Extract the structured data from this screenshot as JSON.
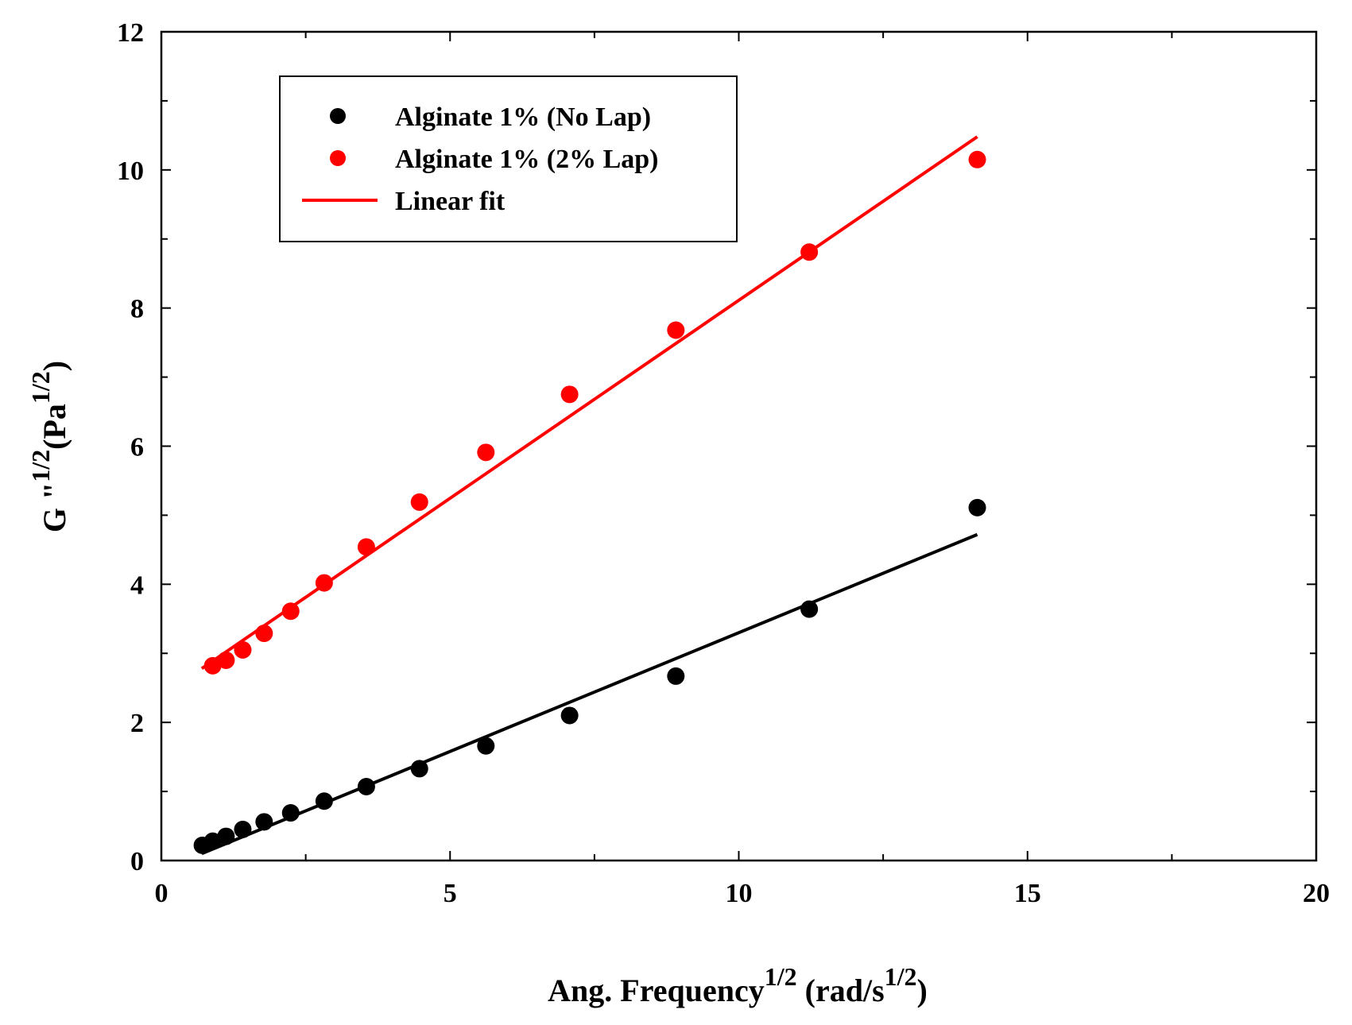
{
  "chart_data": {
    "type": "scatter",
    "title": "",
    "xlabel": {
      "main": "Ang. Frequency",
      "sup1": "1/2",
      "unit_open": " (rad/s",
      "sup2": "1/2",
      "unit_close": ")"
    },
    "ylabel": {
      "main": "G \"",
      "sup1": "1/2",
      "unit_open": "(Pa",
      "sup2": "1/2",
      "unit_close": ")"
    },
    "xlim": [
      0,
      20
    ],
    "ylim": [
      0,
      12
    ],
    "x_ticks": [
      0,
      5,
      10,
      15,
      20
    ],
    "x_tick_labels": [
      "0",
      "5",
      "10",
      "15",
      "20"
    ],
    "y_ticks": [
      0,
      2,
      4,
      6,
      8,
      10,
      12
    ],
    "y_tick_labels": [
      "0",
      "2",
      "4",
      "6",
      "8",
      "10",
      "12"
    ],
    "grid": false,
    "legend_position": "top-left",
    "series": [
      {
        "name": "Alginate 1% (No Lap)",
        "color": "#000000",
        "points": [
          {
            "x": 0.71,
            "y": 0.22
          },
          {
            "x": 0.89,
            "y": 0.28
          },
          {
            "x": 1.12,
            "y": 0.35
          },
          {
            "x": 1.41,
            "y": 0.45
          },
          {
            "x": 1.78,
            "y": 0.56
          },
          {
            "x": 2.24,
            "y": 0.69
          },
          {
            "x": 2.82,
            "y": 0.86
          },
          {
            "x": 3.55,
            "y": 1.07
          },
          {
            "x": 4.47,
            "y": 1.33
          },
          {
            "x": 5.62,
            "y": 1.66
          },
          {
            "x": 7.07,
            "y": 2.1
          },
          {
            "x": 8.91,
            "y": 2.67
          },
          {
            "x": 11.22,
            "y": 3.64
          },
          {
            "x": 14.13,
            "y": 5.11
          }
        ]
      },
      {
        "name": "Alginate 1% (2% Lap)",
        "color": "#ff0000",
        "points": [
          {
            "x": 0.89,
            "y": 2.82
          },
          {
            "x": 1.12,
            "y": 2.9
          },
          {
            "x": 1.41,
            "y": 3.05
          },
          {
            "x": 1.78,
            "y": 3.29
          },
          {
            "x": 2.24,
            "y": 3.61
          },
          {
            "x": 2.82,
            "y": 4.02
          },
          {
            "x": 3.55,
            "y": 4.54
          },
          {
            "x": 4.47,
            "y": 5.19
          },
          {
            "x": 5.62,
            "y": 5.91
          },
          {
            "x": 7.07,
            "y": 6.75
          },
          {
            "x": 8.91,
            "y": 7.68
          },
          {
            "x": 11.22,
            "y": 8.81
          },
          {
            "x": 14.13,
            "y": 10.15
          }
        ]
      }
    ],
    "fits": [
      {
        "name": "fit-no-lap",
        "color": "#000000",
        "x": [
          0.7,
          14.13
        ],
        "y": [
          0.1,
          4.72
        ]
      },
      {
        "name": "fit-2-lap",
        "color": "#ff0000",
        "x": [
          0.7,
          14.13
        ],
        "y": [
          2.78,
          10.48
        ]
      }
    ],
    "legend": [
      {
        "label": "Alginate 1% (No Lap)",
        "kind": "marker",
        "color": "#000000"
      },
      {
        "label": "Alginate 1% (2% Lap)",
        "kind": "marker",
        "color": "#ff0000"
      },
      {
        "label": "Linear fit",
        "kind": "line",
        "color": "#ff0000"
      }
    ]
  }
}
